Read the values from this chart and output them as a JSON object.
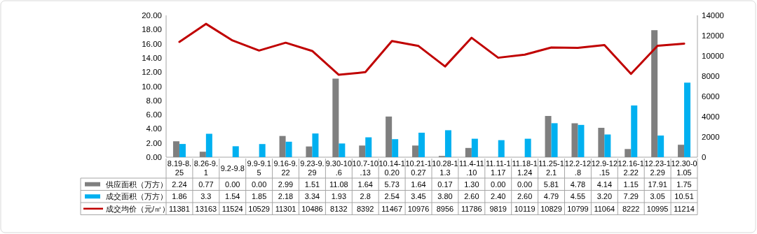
{
  "chart_data": {
    "type": "bar",
    "categories": [
      "8.19-8.25",
      "8.26-9.1",
      "9.2-9.8",
      "9.9-9.15",
      "9.16-9.22",
      "9.23-9.29",
      "9.30-10.6",
      "10.7-10.13",
      "10.14-10.20",
      "10.21-10.27",
      "10.28-11.3",
      "11.4-11.10",
      "11.11-11.17",
      "11.18-11.24",
      "11.25-12.1",
      "12.2-12.8",
      "12.9-12.15",
      "12.16-12.22",
      "12.23-12.29",
      "12.30-01.05"
    ],
    "series": [
      {
        "name": "供应面积（万方）",
        "color": "#7f7f7f",
        "values": [
          2.24,
          0.77,
          0,
          0,
          2.99,
          1.51,
          11.08,
          1.64,
          5.73,
          1.64,
          0.17,
          1.3,
          0,
          0,
          5.81,
          4.78,
          4.14,
          1.15,
          17.91,
          1.75
        ],
        "value_labels": [
          "2.24",
          "0.77",
          "0.00",
          "0.00",
          "2.99",
          "1.51",
          "11.08",
          "1.64",
          "5.73",
          "1.64",
          "0.17",
          "1.30",
          "0.00",
          "0.00",
          "5.81",
          "4.78",
          "4.14",
          "1.15",
          "17.91",
          "1.75"
        ]
      },
      {
        "name": "成交面积（万方）",
        "color": "#00b0f0",
        "values": [
          1.86,
          3.3,
          1.54,
          1.85,
          2.18,
          3.34,
          1.93,
          2.8,
          2.54,
          3.45,
          3.8,
          2.6,
          2.4,
          2.6,
          4.79,
          4.55,
          3.2,
          7.29,
          3.05,
          10.51
        ],
        "value_labels": [
          "1.86",
          "3.3",
          "1.54",
          "1.85",
          "2.18",
          "3.34",
          "1.93",
          "2.8",
          "2.54",
          "3.45",
          "3.80",
          "2.60",
          "2.40",
          "2.60",
          "4.79",
          "4.55",
          "3.20",
          "7.29",
          "3.05",
          "10.51"
        ]
      },
      {
        "name": "成交均价（元/㎡）",
        "type": "line",
        "axis": "y2",
        "color": "#c00000",
        "values": [
          11381,
          13163,
          11524,
          10529,
          11301,
          10486,
          8132,
          8392,
          11467,
          10976,
          8956,
          11786,
          9819,
          10119,
          10829,
          10799,
          11064,
          8222,
          10995,
          11214
        ],
        "value_labels": [
          "11381",
          "13163",
          "11524",
          "10529",
          "11301",
          "10486",
          "8132",
          "8392",
          "11467",
          "10976",
          "8956",
          "11786",
          "9819",
          "10119",
          "10829",
          "10799",
          "11064",
          "8222",
          "10995",
          "11214"
        ]
      }
    ],
    "ylim": [
      0,
      20
    ],
    "yticks": [
      {
        "value": 0,
        "label": "0.00"
      },
      {
        "value": 2,
        "label": "2.00"
      },
      {
        "value": 4,
        "label": "4.00"
      },
      {
        "value": 6,
        "label": "6.00"
      },
      {
        "value": 8,
        "label": "8.00"
      },
      {
        "value": 10,
        "label": "10.00"
      },
      {
        "value": 12,
        "label": "12.00"
      },
      {
        "value": 14,
        "label": "14.00"
      },
      {
        "value": 16,
        "label": "16.00"
      },
      {
        "value": 18,
        "label": "18.00"
      },
      {
        "value": 20,
        "label": "20.00"
      }
    ],
    "y2lim": [
      0,
      14000
    ],
    "y2ticks": [
      0,
      2000,
      4000,
      6000,
      8000,
      10000,
      12000,
      14000
    ],
    "legend": "bottom",
    "grid": false
  }
}
